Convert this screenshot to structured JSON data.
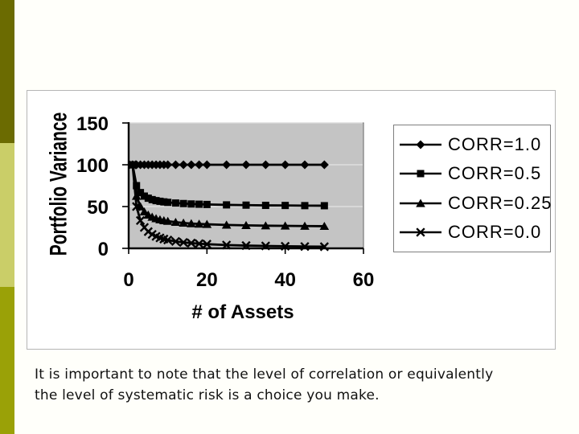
{
  "slide": {
    "background": "#fffffa",
    "rail": {
      "width": 18,
      "segments": [
        {
          "name": "top",
          "color": "#6b6b01"
        },
        {
          "name": "middle",
          "color": "#cace68"
        },
        {
          "name": "bottom",
          "color": "#9aa107"
        }
      ]
    },
    "caption": {
      "line1": "It is important to note that the level of correlation or equivalently",
      "line2": "the level of systematic risk is a choice you make."
    }
  },
  "chart_data": {
    "type": "line",
    "title": "",
    "xlabel": "# of Assets",
    "ylabel": "Portfolio Variance",
    "xlim": [
      0,
      60
    ],
    "ylim": [
      0,
      150
    ],
    "xticks": [
      0,
      20,
      40,
      60
    ],
    "yticks": [
      0,
      50,
      100,
      150
    ],
    "grid": "horizontal",
    "plot_bg": "#c4c4c4",
    "gridline_color": "#e3e3e3",
    "series_color": "#000000",
    "legend_position": "right",
    "x": [
      1,
      2,
      3,
      4,
      5,
      6,
      7,
      8,
      9,
      10,
      12,
      14,
      16,
      18,
      20,
      25,
      30,
      35,
      40,
      45,
      50
    ],
    "series": [
      {
        "name": "CORR=1.0",
        "marker": "diamond",
        "values": [
          100,
          100,
          100,
          100,
          100,
          100,
          100,
          100,
          100,
          100,
          100,
          100,
          100,
          100,
          100,
          100,
          100,
          100,
          100,
          100,
          100
        ]
      },
      {
        "name": "CORR=0.5",
        "marker": "square",
        "values": [
          100,
          75,
          66.7,
          62.5,
          60,
          58.3,
          57.1,
          56.3,
          55.6,
          55,
          54.2,
          53.6,
          53.1,
          52.8,
          52.5,
          52,
          51.7,
          51.4,
          51.3,
          51.1,
          51
        ]
      },
      {
        "name": "CORR=0.25",
        "marker": "triangle",
        "values": [
          100,
          62.5,
          50,
          43.8,
          40,
          37.5,
          35.7,
          34.4,
          33.3,
          32.5,
          31.3,
          30.4,
          29.7,
          29.2,
          28.8,
          28,
          27.5,
          27.1,
          26.9,
          26.7,
          26.5
        ]
      },
      {
        "name": "CORR=0.0",
        "marker": "x",
        "values": [
          100,
          50,
          33.3,
          25,
          20,
          16.7,
          14.3,
          12.5,
          11.1,
          10,
          8.3,
          7.1,
          6.3,
          5.6,
          5,
          4,
          3.3,
          2.9,
          2.5,
          2.2,
          2
        ]
      }
    ]
  }
}
